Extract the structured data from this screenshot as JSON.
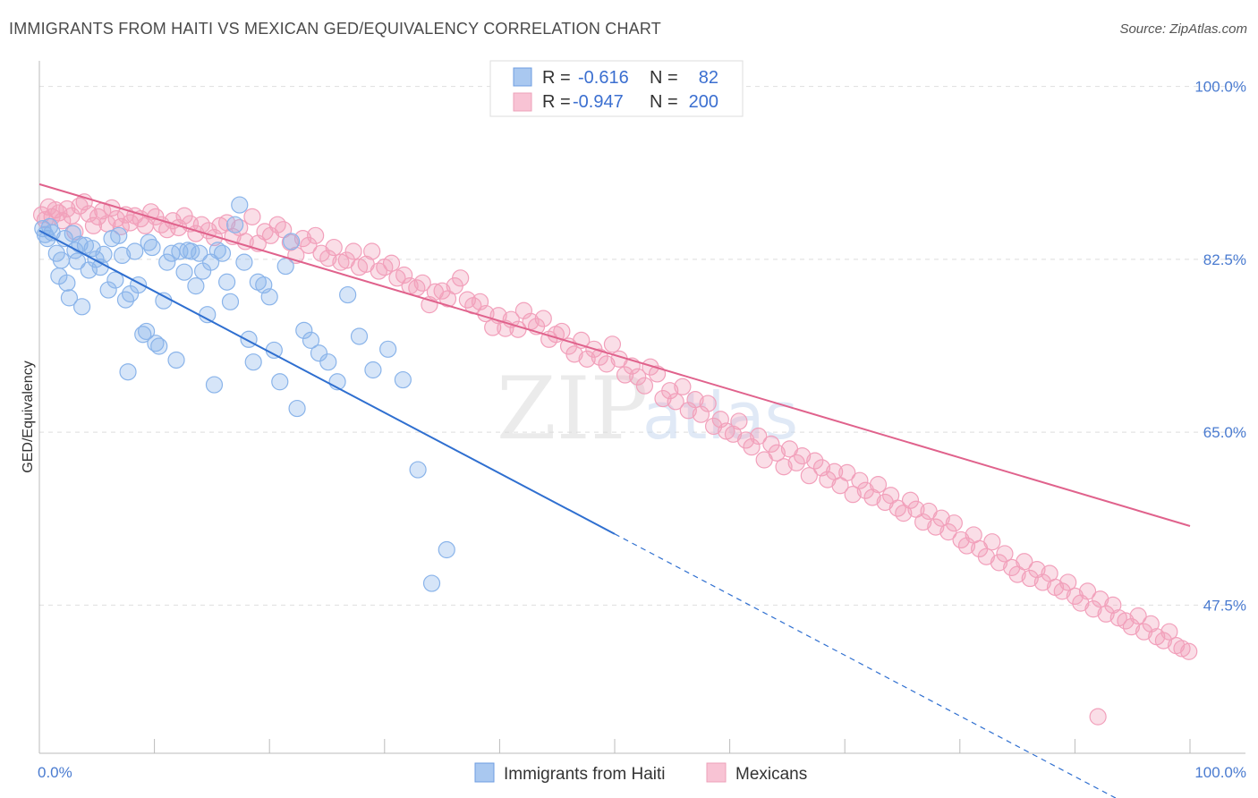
{
  "title": "IMMIGRANTS FROM HAITI VS MEXICAN GED/EQUIVALENCY CORRELATION CHART",
  "source": "Source: ZipAtlas.com",
  "watermark": {
    "zip": "ZIP",
    "atlas": "atlas"
  },
  "colors": {
    "haiti": "#8ab4ea",
    "haiti_line": "#2f6fd0",
    "mexican": "#f2a0bb",
    "mexican_line": "#e0628c",
    "tick": "#4a7bd0"
  },
  "legend": {
    "r_label": "R =",
    "n_label": "N =",
    "rows": [
      {
        "r": "-0.616",
        "n": "82"
      },
      {
        "r": "-0.947",
        "n": "200"
      }
    ]
  },
  "chart_data": {
    "type": "scatter",
    "title": "IMMIGRANTS FROM HAITI VS MEXICAN GED/EQUIVALENCY CORRELATION CHART",
    "xlabel": "",
    "ylabel": "GED/Equivalency",
    "x_tick_labels": [
      "0.0%",
      "100.0%"
    ],
    "y_tick_labels": [
      "100.0%",
      "82.5%",
      "65.0%",
      "47.5%"
    ],
    "y_ticks": [
      100.0,
      82.5,
      65.0,
      47.5
    ],
    "xlim": [
      0,
      100
    ],
    "ylim": [
      32.5,
      101.5
    ],
    "grid": true,
    "legend_position": "top-center",
    "series": [
      {
        "name": "Immigrants from Haiti",
        "r": -0.616,
        "n": 82,
        "trend": {
          "x0": 0,
          "y0": 85.4,
          "x1": 50,
          "y1": 54.7,
          "dashed_to_x": 100
        },
        "points": [
          [
            0.3,
            85.6
          ],
          [
            0.5,
            85.0
          ],
          [
            0.7,
            84.6
          ],
          [
            0.9,
            85.8
          ],
          [
            1.1,
            85.2
          ],
          [
            1.5,
            83.1
          ],
          [
            1.7,
            80.8
          ],
          [
            1.9,
            82.4
          ],
          [
            2.2,
            84.6
          ],
          [
            2.4,
            80.1
          ],
          [
            2.6,
            78.6
          ],
          [
            2.9,
            85.1
          ],
          [
            3.1,
            83.4
          ],
          [
            3.3,
            82.3
          ],
          [
            3.5,
            84.0
          ],
          [
            3.7,
            77.7
          ],
          [
            4.0,
            83.9
          ],
          [
            4.3,
            81.4
          ],
          [
            4.6,
            83.6
          ],
          [
            4.9,
            82.5
          ],
          [
            5.3,
            81.7
          ],
          [
            5.6,
            83.0
          ],
          [
            6.0,
            79.4
          ],
          [
            6.3,
            84.6
          ],
          [
            6.6,
            80.4
          ],
          [
            6.9,
            84.9
          ],
          [
            7.2,
            82.9
          ],
          [
            7.5,
            78.4
          ],
          [
            7.7,
            71.1
          ],
          [
            7.9,
            79.0
          ],
          [
            8.3,
            83.3
          ],
          [
            8.6,
            79.9
          ],
          [
            9.0,
            74.9
          ],
          [
            9.3,
            75.2
          ],
          [
            9.5,
            84.2
          ],
          [
            9.8,
            83.7
          ],
          [
            10.1,
            74.0
          ],
          [
            10.4,
            73.7
          ],
          [
            10.8,
            78.3
          ],
          [
            11.1,
            82.2
          ],
          [
            11.5,
            83.1
          ],
          [
            11.9,
            72.3
          ],
          [
            12.2,
            83.3
          ],
          [
            12.6,
            81.2
          ],
          [
            12.9,
            83.4
          ],
          [
            13.2,
            83.3
          ],
          [
            13.6,
            79.8
          ],
          [
            13.9,
            83.1
          ],
          [
            14.2,
            81.3
          ],
          [
            14.6,
            76.9
          ],
          [
            14.9,
            82.2
          ],
          [
            15.2,
            69.8
          ],
          [
            15.5,
            83.4
          ],
          [
            15.9,
            83.1
          ],
          [
            16.3,
            80.2
          ],
          [
            16.6,
            78.2
          ],
          [
            17.0,
            86.0
          ],
          [
            17.4,
            88.0
          ],
          [
            17.8,
            82.2
          ],
          [
            18.2,
            74.4
          ],
          [
            18.6,
            72.1
          ],
          [
            19.0,
            80.2
          ],
          [
            19.5,
            79.9
          ],
          [
            20.0,
            78.7
          ],
          [
            20.4,
            73.3
          ],
          [
            20.9,
            70.1
          ],
          [
            21.4,
            81.8
          ],
          [
            21.9,
            84.3
          ],
          [
            22.4,
            67.4
          ],
          [
            23.0,
            75.3
          ],
          [
            23.6,
            74.3
          ],
          [
            24.3,
            73.0
          ],
          [
            25.1,
            72.1
          ],
          [
            25.9,
            70.1
          ],
          [
            26.8,
            78.9
          ],
          [
            27.8,
            74.7
          ],
          [
            29.0,
            71.3
          ],
          [
            30.3,
            73.4
          ],
          [
            31.6,
            70.3
          ],
          [
            32.9,
            61.2
          ],
          [
            34.1,
            49.7
          ],
          [
            35.4,
            53.1
          ]
        ]
      },
      {
        "name": "Mexicans",
        "r": -0.947,
        "n": 200,
        "trend": {
          "x0": 0,
          "y0": 90.1,
          "x1": 100,
          "y1": 55.5
        },
        "points": [
          [
            0.2,
            87.0
          ],
          [
            0.5,
            86.5
          ],
          [
            0.8,
            87.8
          ],
          [
            1.1,
            86.8
          ],
          [
            1.4,
            87.5
          ],
          [
            1.7,
            87.2
          ],
          [
            2.0,
            86.4
          ],
          [
            2.4,
            87.6
          ],
          [
            2.8,
            86.9
          ],
          [
            3.1,
            85.3
          ],
          [
            3.5,
            87.9
          ],
          [
            3.9,
            88.3
          ],
          [
            4.3,
            87.1
          ],
          [
            4.7,
            85.9
          ],
          [
            5.1,
            86.8
          ],
          [
            5.5,
            87.4
          ],
          [
            5.9,
            86.1
          ],
          [
            6.3,
            87.7
          ],
          [
            6.7,
            86.6
          ],
          [
            7.1,
            85.8
          ],
          [
            7.5,
            87.0
          ],
          [
            7.9,
            86.2
          ],
          [
            8.3,
            86.9
          ],
          [
            8.8,
            86.6
          ],
          [
            9.2,
            85.9
          ],
          [
            9.7,
            87.3
          ],
          [
            10.1,
            86.8
          ],
          [
            10.6,
            86.0
          ],
          [
            11.1,
            85.5
          ],
          [
            11.6,
            86.4
          ],
          [
            12.1,
            85.7
          ],
          [
            12.6,
            86.9
          ],
          [
            13.1,
            86.1
          ],
          [
            13.6,
            85.1
          ],
          [
            14.1,
            86.0
          ],
          [
            14.7,
            85.4
          ],
          [
            15.2,
            84.7
          ],
          [
            15.7,
            85.9
          ],
          [
            16.3,
            86.2
          ],
          [
            16.8,
            84.8
          ],
          [
            17.4,
            85.7
          ],
          [
            17.9,
            84.3
          ],
          [
            18.5,
            86.8
          ],
          [
            19.0,
            84.1
          ],
          [
            19.6,
            85.3
          ],
          [
            20.1,
            84.9
          ],
          [
            20.7,
            86.0
          ],
          [
            21.2,
            85.5
          ],
          [
            21.8,
            84.2
          ],
          [
            22.3,
            82.9
          ],
          [
            22.9,
            84.6
          ],
          [
            23.4,
            83.9
          ],
          [
            24.0,
            84.9
          ],
          [
            24.5,
            83.1
          ],
          [
            25.1,
            82.6
          ],
          [
            25.6,
            83.7
          ],
          [
            26.2,
            82.2
          ],
          [
            26.7,
            82.4
          ],
          [
            27.3,
            83.3
          ],
          [
            27.8,
            81.7
          ],
          [
            28.4,
            82.0
          ],
          [
            28.9,
            83.3
          ],
          [
            29.5,
            81.3
          ],
          [
            30.0,
            81.7
          ],
          [
            30.6,
            82.1
          ],
          [
            31.1,
            80.6
          ],
          [
            31.7,
            80.9
          ],
          [
            32.2,
            79.8
          ],
          [
            32.8,
            79.6
          ],
          [
            33.3,
            80.1
          ],
          [
            33.9,
            77.9
          ],
          [
            34.4,
            79.2
          ],
          [
            35.0,
            79.3
          ],
          [
            35.5,
            78.5
          ],
          [
            36.1,
            79.8
          ],
          [
            36.6,
            80.6
          ],
          [
            37.2,
            78.4
          ],
          [
            37.7,
            77.8
          ],
          [
            38.3,
            78.2
          ],
          [
            38.8,
            77.0
          ],
          [
            39.4,
            75.6
          ],
          [
            39.9,
            76.8
          ],
          [
            40.5,
            75.5
          ],
          [
            41.0,
            76.4
          ],
          [
            41.6,
            75.4
          ],
          [
            42.1,
            77.3
          ],
          [
            42.7,
            76.2
          ],
          [
            43.2,
            75.7
          ],
          [
            43.8,
            76.5
          ],
          [
            44.3,
            74.4
          ],
          [
            44.9,
            74.9
          ],
          [
            45.4,
            75.2
          ],
          [
            46.0,
            73.7
          ],
          [
            46.5,
            72.9
          ],
          [
            47.1,
            74.3
          ],
          [
            47.6,
            72.4
          ],
          [
            48.2,
            73.4
          ],
          [
            48.7,
            72.6
          ],
          [
            49.3,
            71.9
          ],
          [
            49.8,
            73.9
          ],
          [
            50.4,
            72.4
          ],
          [
            50.9,
            70.8
          ],
          [
            51.5,
            71.7
          ],
          [
            52.0,
            70.6
          ],
          [
            52.6,
            69.7
          ],
          [
            53.1,
            71.6
          ],
          [
            53.7,
            70.9
          ],
          [
            54.2,
            68.4
          ],
          [
            54.8,
            69.2
          ],
          [
            55.3,
            68.1
          ],
          [
            55.9,
            69.6
          ],
          [
            56.4,
            67.2
          ],
          [
            57.0,
            68.3
          ],
          [
            57.5,
            66.8
          ],
          [
            58.1,
            67.9
          ],
          [
            58.6,
            65.6
          ],
          [
            59.2,
            66.3
          ],
          [
            59.7,
            65.1
          ],
          [
            60.3,
            64.8
          ],
          [
            60.8,
            66.1
          ],
          [
            61.4,
            64.2
          ],
          [
            61.9,
            63.5
          ],
          [
            62.5,
            64.6
          ],
          [
            63.0,
            62.2
          ],
          [
            63.6,
            63.8
          ],
          [
            64.1,
            62.9
          ],
          [
            64.7,
            61.5
          ],
          [
            65.2,
            63.3
          ],
          [
            65.8,
            61.9
          ],
          [
            66.3,
            62.6
          ],
          [
            66.9,
            60.6
          ],
          [
            67.4,
            62.1
          ],
          [
            68.0,
            61.4
          ],
          [
            68.5,
            60.2
          ],
          [
            69.1,
            61.0
          ],
          [
            69.6,
            59.6
          ],
          [
            70.2,
            60.9
          ],
          [
            70.7,
            58.7
          ],
          [
            71.3,
            60.1
          ],
          [
            71.8,
            59.1
          ],
          [
            72.4,
            58.4
          ],
          [
            72.9,
            59.7
          ],
          [
            73.5,
            57.9
          ],
          [
            74.0,
            58.6
          ],
          [
            74.6,
            57.3
          ],
          [
            75.1,
            56.8
          ],
          [
            75.7,
            58.1
          ],
          [
            76.2,
            57.2
          ],
          [
            76.8,
            55.9
          ],
          [
            77.3,
            57.0
          ],
          [
            77.9,
            55.4
          ],
          [
            78.4,
            56.3
          ],
          [
            79.0,
            54.9
          ],
          [
            79.5,
            55.8
          ],
          [
            80.1,
            54.1
          ],
          [
            80.6,
            53.5
          ],
          [
            81.2,
            54.6
          ],
          [
            81.7,
            53.2
          ],
          [
            82.3,
            52.4
          ],
          [
            82.8,
            53.9
          ],
          [
            83.4,
            51.8
          ],
          [
            83.9,
            52.7
          ],
          [
            84.5,
            51.3
          ],
          [
            85.0,
            50.6
          ],
          [
            85.6,
            51.9
          ],
          [
            86.1,
            50.2
          ],
          [
            86.7,
            51.1
          ],
          [
            87.2,
            49.8
          ],
          [
            87.8,
            50.7
          ],
          [
            88.3,
            49.3
          ],
          [
            88.9,
            48.9
          ],
          [
            89.4,
            49.8
          ],
          [
            90.0,
            48.4
          ],
          [
            90.5,
            47.7
          ],
          [
            91.1,
            48.9
          ],
          [
            91.6,
            47.1
          ],
          [
            92.2,
            48.1
          ],
          [
            92.7,
            46.6
          ],
          [
            93.3,
            47.5
          ],
          [
            93.8,
            46.2
          ],
          [
            94.4,
            45.9
          ],
          [
            94.9,
            45.3
          ],
          [
            95.5,
            46.4
          ],
          [
            96.0,
            44.8
          ],
          [
            96.6,
            45.6
          ],
          [
            97.1,
            44.3
          ],
          [
            97.7,
            43.9
          ],
          [
            98.2,
            44.8
          ],
          [
            98.8,
            43.4
          ],
          [
            99.3,
            43.1
          ],
          [
            99.9,
            42.8
          ],
          [
            92.0,
            36.2
          ]
        ]
      }
    ]
  },
  "bottom_legend": [
    {
      "label": "Immigrants from Haiti"
    },
    {
      "label": "Mexicans"
    }
  ]
}
